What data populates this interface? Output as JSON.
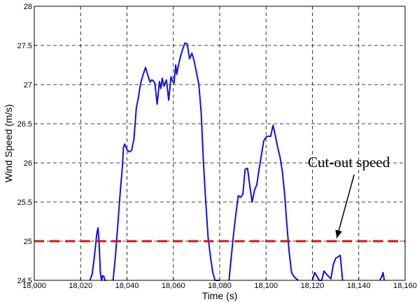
{
  "chart_data": {
    "type": "line",
    "title": "",
    "xlabel": "Time (s)",
    "ylabel": "Wind Speed (m/s)",
    "xlim": [
      18000,
      18160
    ],
    "ylim": [
      24.5,
      28
    ],
    "grid": true,
    "x_ticks": [
      18000,
      18020,
      18040,
      18060,
      18080,
      18100,
      18120,
      18140,
      18160
    ],
    "x_tick_labels": [
      "18,000",
      "18,020",
      "18,040",
      "18,060",
      "18,080",
      "18,100",
      "18,120",
      "18,140",
      "18,160"
    ],
    "y_ticks": [
      24.5,
      25,
      25.5,
      26,
      26.5,
      27,
      27.5,
      28
    ],
    "y_tick_labels": [
      "24.5",
      "25",
      "25.5",
      "26",
      "26.5",
      "27",
      "27.5",
      "28"
    ],
    "series": [
      {
        "color": "#1010e0",
        "segments": [
          {
            "x": [
              18024,
              18025,
              18026,
              18027,
              18027.5,
              18028,
              18028.5,
              18029,
              18029.5,
              18030,
              18030.5,
              18031
            ],
            "y": [
              24.5,
              24.58,
              24.82,
              25.1,
              25.17,
              24.95,
              24.6,
              24.5,
              24.56,
              24.55,
              24.5,
              24.5
            ]
          },
          {
            "x": [
              18034,
              18035,
              18036,
              18037,
              18038,
              18038.5,
              18039,
              18040,
              18041,
              18042,
              18043,
              18044,
              18045,
              18045.5,
              18046,
              18047,
              18048,
              18049,
              18050,
              18050.7,
              18051.3,
              18052,
              18053,
              18054,
              18054.6,
              18055.2,
              18056,
              18057,
              18058,
              18059,
              18059.6,
              18060.3,
              18061,
              18061.5,
              18062,
              18063,
              18064,
              18065,
              18066,
              18067,
              18068,
              18069,
              18070,
              18071,
              18072,
              18073,
              18074,
              18075,
              18076,
              18077,
              18078,
              18079,
              18080
            ],
            "y": [
              24.5,
              24.8,
              25.2,
              25.6,
              25.95,
              26.2,
              26.24,
              26.17,
              26.14,
              26.16,
              26.3,
              26.7,
              26.85,
              26.95,
              27.03,
              27.13,
              27.22,
              27.12,
              27.03,
              27.06,
              27.05,
              27.02,
              26.75,
              27.04,
              26.95,
              27.08,
              26.98,
              27.06,
              26.8,
              27.1,
              27.05,
              27.02,
              27.25,
              27.13,
              27.22,
              27.35,
              27.45,
              27.53,
              27.52,
              27.33,
              27.4,
              27.3,
              27.15,
              27.0,
              26.65,
              26.0,
              25.5,
              25.05,
              24.8,
              24.6,
              24.5,
              24.5,
              24.5
            ]
          },
          {
            "x": [
              18084,
              18085,
              18086,
              18087,
              18088,
              18089,
              18090,
              18091,
              18092,
              18093,
              18094,
              18095,
              18096,
              18097,
              18098,
              18099,
              18100,
              18101,
              18102,
              18103,
              18104,
              18105,
              18106,
              18107,
              18108,
              18109,
              18110,
              18111,
              18112,
              18113,
              18114
            ],
            "y": [
              24.5,
              24.8,
              25.1,
              25.35,
              25.58,
              25.56,
              25.6,
              25.92,
              25.93,
              25.7,
              25.5,
              25.65,
              25.72,
              25.92,
              26.1,
              26.28,
              26.33,
              26.34,
              26.34,
              26.48,
              26.35,
              26.2,
              26.08,
              25.9,
              25.6,
              25.2,
              24.85,
              24.6,
              24.55,
              24.52,
              24.5
            ]
          },
          {
            "x": [
              18120,
              18121,
              18122,
              18123,
              18124,
              18125,
              18126,
              18127,
              18128,
              18129,
              18130,
              18131,
              18132,
              18133
            ],
            "y": [
              24.5,
              24.6,
              24.55,
              24.5,
              24.5,
              24.62,
              24.58,
              24.55,
              24.52,
              24.7,
              24.78,
              24.8,
              24.82,
              24.5
            ]
          },
          {
            "x": [
              18149,
              18150,
              18150.5,
              18151
            ],
            "y": [
              24.5,
              24.55,
              24.6,
              24.5
            ]
          }
        ]
      }
    ],
    "threshold_line": {
      "y": 25,
      "color": "#e01010",
      "dashed": true
    },
    "annotation": {
      "text": "Cut-out speed",
      "arrow_to": [
        18130.5,
        25.04
      ],
      "arrow_from": [
        18138,
        25.85
      ]
    }
  }
}
